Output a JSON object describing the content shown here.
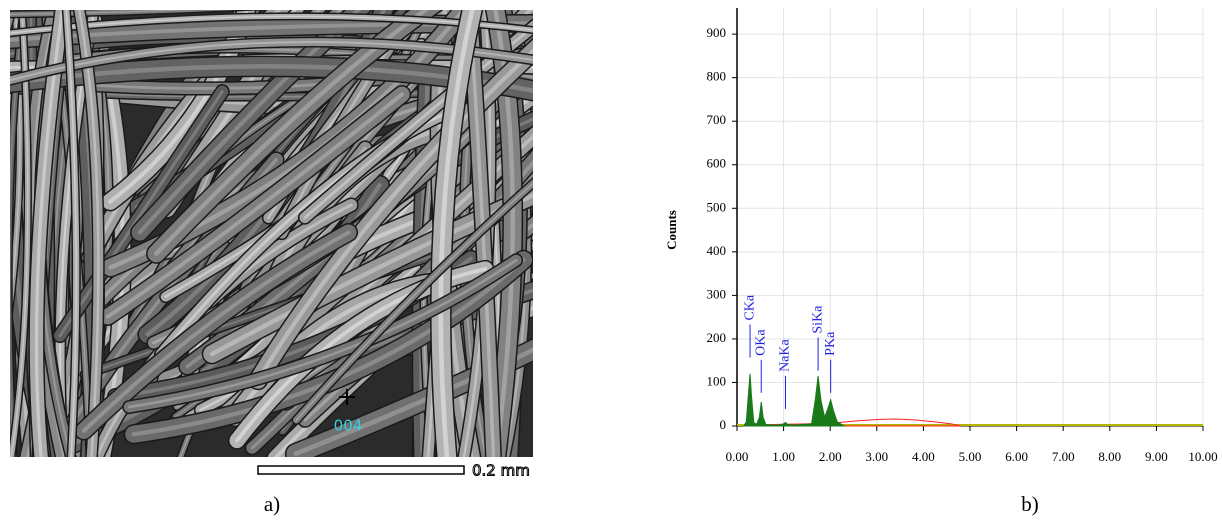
{
  "image_panel": {
    "marker_label": "004",
    "scale_bar": "0.2 mm",
    "caption": "a)"
  },
  "chart_data": {
    "type": "area",
    "caption": "b)",
    "ylabel": "Counts",
    "xlim": [
      0,
      10
    ],
    "ylim": [
      0,
      960
    ],
    "grid": true,
    "xticks": [
      {
        "value": 0,
        "label": "0.00"
      },
      {
        "value": 1,
        "label": "1.00"
      },
      {
        "value": 2,
        "label": "2.00"
      },
      {
        "value": 3,
        "label": "3.00"
      },
      {
        "value": 4,
        "label": "4.00"
      },
      {
        "value": 5,
        "label": "5.00"
      },
      {
        "value": 6,
        "label": "6.00"
      },
      {
        "value": 7,
        "label": "7.00"
      },
      {
        "value": 8,
        "label": "8.00"
      },
      {
        "value": 9,
        "label": "9.00"
      },
      {
        "value": 10,
        "label": "10.00"
      }
    ],
    "yticks": [
      0,
      100,
      200,
      300,
      400,
      500,
      600,
      700,
      800,
      900
    ],
    "series": [
      {
        "color": "#ff2020",
        "x": [
          0.3,
          0.6,
          1.0,
          1.5,
          2.2,
          2.6,
          3.0,
          3.4,
          3.8,
          4.2,
          4.6,
          4.8
        ],
        "values": [
          2,
          3,
          4,
          5,
          8,
          12,
          15,
          16,
          14,
          10,
          5,
          0
        ]
      },
      {
        "color": "#1a7a1a",
        "x": [
          0.15,
          0.2,
          0.25,
          0.28,
          0.31,
          0.36,
          0.42,
          0.48,
          0.52,
          0.56,
          0.62,
          0.9,
          1.0,
          1.04,
          1.08,
          1.2,
          1.6,
          1.68,
          1.74,
          1.8,
          1.88,
          1.95,
          2.01,
          2.07,
          2.15,
          2.3
        ],
        "values": [
          0,
          10,
          80,
          120,
          70,
          8,
          4,
          20,
          55,
          20,
          3,
          2,
          5,
          8,
          4,
          2,
          5,
          60,
          115,
          60,
          20,
          40,
          60,
          35,
          10,
          0
        ]
      }
    ],
    "annotations": [
      {
        "text": "CKa",
        "x": 0.28,
        "y": 233
      },
      {
        "text": "OKa",
        "x": 0.52,
        "y": 152
      },
      {
        "text": "NaKa",
        "x": 1.04,
        "y": 115
      },
      {
        "text": "SiKa",
        "x": 1.74,
        "y": 203
      },
      {
        "text": "PKa",
        "x": 2.01,
        "y": 152
      }
    ]
  }
}
